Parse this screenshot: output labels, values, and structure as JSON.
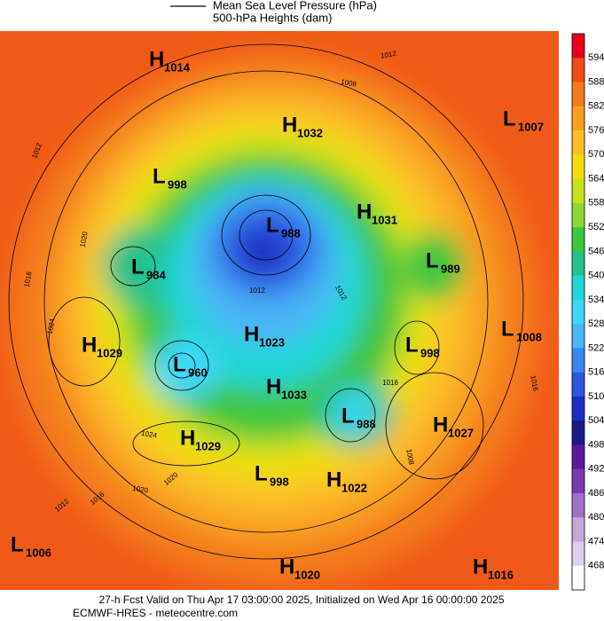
{
  "header": {
    "line_label": "Mean Sea Level Pressure (hPa)",
    "fill_label": "500-hPa Heights (dam)"
  },
  "colorbar": {
    "ticks": [
      594,
      588,
      582,
      576,
      570,
      564,
      558,
      552,
      546,
      540,
      534,
      528,
      522,
      516,
      510,
      504,
      498,
      492,
      486,
      480,
      474,
      468
    ],
    "colors": [
      "#e8001c",
      "#f04a1a",
      "#f47a1e",
      "#f99e22",
      "#fbbf2a",
      "#f3dc08",
      "#c6e21a",
      "#8ed63a",
      "#3fc63f",
      "#22c28c",
      "#1ed6d6",
      "#3cd7f5",
      "#4ab6f5",
      "#3a86f0",
      "#2a56e0",
      "#1c2ec2",
      "#1a1a8a",
      "#5a1a9a",
      "#7a3aaa",
      "#a070c8",
      "#c4a8dc",
      "#ddd0ec",
      "#ffffff"
    ]
  },
  "centers": [
    {
      "type": "H",
      "value": 1014
    },
    {
      "type": "H",
      "value": 1032
    },
    {
      "type": "L",
      "value": 1007
    },
    {
      "type": "L",
      "value": 998
    },
    {
      "type": "H",
      "value": 1031
    },
    {
      "type": "L",
      "value": 988
    },
    {
      "type": "L",
      "value": 989
    },
    {
      "type": "L",
      "value": 984
    },
    {
      "type": "H",
      "value": 1029
    },
    {
      "type": "H",
      "value": 1023
    },
    {
      "type": "L",
      "value": 1008
    },
    {
      "type": "L",
      "value": 998
    },
    {
      "type": "L",
      "value": 960
    },
    {
      "type": "H",
      "value": 1033
    },
    {
      "type": "L",
      "value": 988
    },
    {
      "type": "H",
      "value": 1027
    },
    {
      "type": "H",
      "value": 1029
    },
    {
      "type": "L",
      "value": 998
    },
    {
      "type": "H",
      "value": 1022
    },
    {
      "type": "L",
      "value": 1006
    },
    {
      "type": "H",
      "value": 1020
    },
    {
      "type": "H",
      "value": 1016
    }
  ],
  "contour_labels": [
    1012,
    1008,
    1012,
    1020,
    1016,
    1024,
    1012,
    1012,
    1016,
    1024,
    1020,
    1020,
    1012,
    1016,
    1016,
    1008
  ],
  "footer": {
    "valid": "27-h Fcst Valid on Thu Apr 17 03:00:00 2025, Initialized on Wed Apr 16 00:00:00 2025",
    "source": "ECMWF-HRES  - meteocentre.com"
  }
}
